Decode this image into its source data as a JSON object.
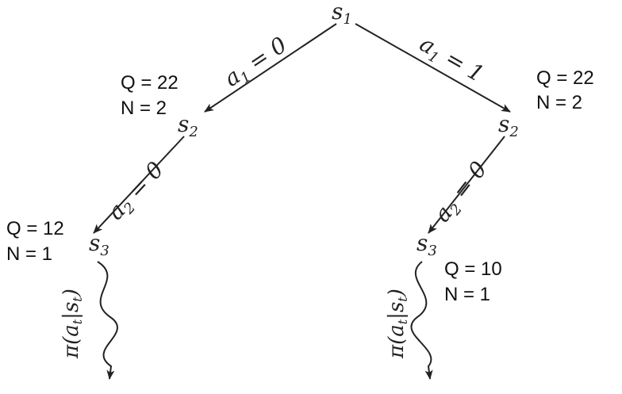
{
  "nodes": {
    "root": {
      "state": "s",
      "sub": "1"
    },
    "left_mid": {
      "state": "s",
      "sub": "2"
    },
    "right_mid": {
      "state": "s",
      "sub": "2"
    },
    "left_leaf": {
      "state": "s",
      "sub": "3"
    },
    "right_leaf": {
      "state": "s",
      "sub": "3"
    }
  },
  "edges": {
    "root_left": {
      "var": "a",
      "sub": "1",
      "rel": " = 0"
    },
    "root_right": {
      "var": "a",
      "sub": "1",
      "rel": " = 1"
    },
    "left_down": {
      "var": "a",
      "sub": "2",
      "rel": " = 0"
    },
    "right_down": {
      "var": "a",
      "sub": "2",
      "rel": " = 0"
    }
  },
  "stats": {
    "left_mid": {
      "q": "Q = 22",
      "n": "N = 2"
    },
    "right_mid": {
      "q": "Q = 22",
      "n": "N = 2"
    },
    "left_leaf": {
      "q": "Q = 12",
      "n": "N = 1"
    },
    "right_leaf": {
      "q": "Q = 10",
      "n": "N = 1"
    }
  },
  "policy": {
    "left": {
      "pi": "π(",
      "a": "a",
      "a_sub": "t",
      "bar": "|",
      "s": "s",
      "s_sub": "t",
      "close": ")"
    },
    "right": {
      "pi": "π(",
      "a": "a",
      "a_sub": "t",
      "bar": "|",
      "s": "s",
      "s_sub": "t",
      "close": ")"
    }
  },
  "colors": {
    "ink": "#222222",
    "background": "#ffffff"
  }
}
